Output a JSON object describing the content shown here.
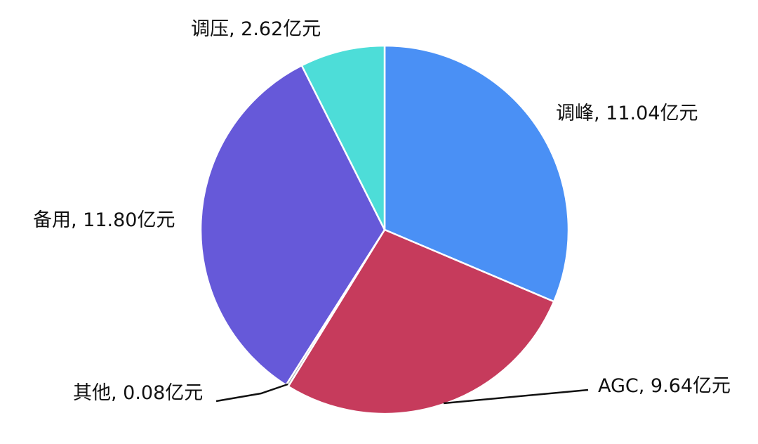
{
  "chart_data": {
    "type": "pie",
    "title": "",
    "unit": "亿元",
    "slices": [
      {
        "name": "调峰",
        "value": 11.04,
        "label": "调峰, 11.04亿元",
        "color": "#4A90F5"
      },
      {
        "name": "AGC",
        "value": 9.64,
        "label": "AGC, 9.64亿元",
        "color": "#C63B5C"
      },
      {
        "name": "其他",
        "value": 0.08,
        "label": "其他, 0.08亿元",
        "color": "#9AA0A6"
      },
      {
        "name": "备用",
        "value": 11.8,
        "label": "备用, 11.80亿元",
        "color": "#6659D9"
      },
      {
        "name": "调压",
        "value": 2.62,
        "label": "调压, 2.62亿元",
        "color": "#4DDDD8"
      }
    ],
    "start_angle": "12 o'clock",
    "direction": "clockwise",
    "legend": "none"
  }
}
